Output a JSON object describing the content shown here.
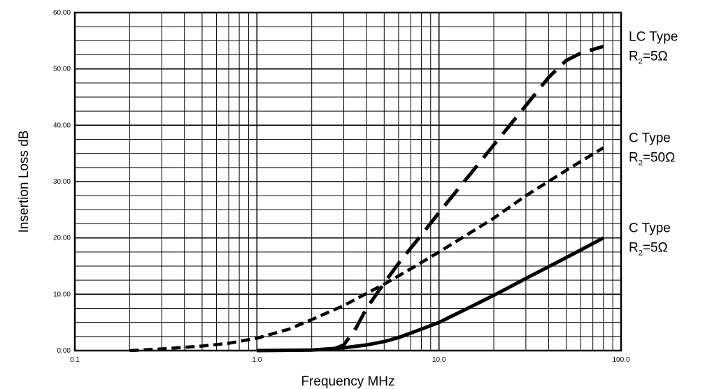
{
  "chart_data": {
    "type": "line",
    "xlabel": "Frequency MHz",
    "ylabel": "Insertion Loss dB",
    "x_scale": "log",
    "xlim": [
      0.1,
      100.0
    ],
    "ylim": [
      0,
      60
    ],
    "x_ticks": [
      {
        "value": 0.1,
        "label": "0.1"
      },
      {
        "value": 1,
        "label": "1.0"
      },
      {
        "value": 10,
        "label": "10.0"
      },
      {
        "value": 100,
        "label": "100.0"
      }
    ],
    "y_ticks": [
      {
        "value": 0,
        "label": "0.00"
      },
      {
        "value": 10,
        "label": "10.00"
      },
      {
        "value": 20,
        "label": "20.00"
      },
      {
        "value": 30,
        "label": "30.00"
      },
      {
        "value": 40,
        "label": "40.00"
      },
      {
        "value": 50,
        "label": "50.00"
      },
      {
        "value": 60,
        "label": "60.00"
      }
    ],
    "grid": true,
    "series": [
      {
        "name": "LC Type R2=5Ω",
        "label_line1": "LC Type",
        "label_line2_main": "R",
        "label_line2_sub": "2",
        "label_line2_rest": "=5Ω",
        "style": "long-dash",
        "color": "#000000",
        "x": [
          2.6,
          3.0,
          3.5,
          4.0,
          5.0,
          6.0,
          8.0,
          10.0,
          15.0,
          20.0,
          30.0,
          40.0,
          50.0,
          60.0,
          80.0
        ],
        "y": [
          0.2,
          1.0,
          4.0,
          7.5,
          12.0,
          15.5,
          20.5,
          24.5,
          31.5,
          36.5,
          43.5,
          48.5,
          51.5,
          52.8,
          54.0
        ]
      },
      {
        "name": "C Type R2=50Ω",
        "label_line1": "C Type",
        "label_line2_main": "R",
        "label_line2_sub": "2",
        "label_line2_rest": "=50Ω",
        "style": "short-dash",
        "color": "#000000",
        "x": [
          0.2,
          0.3,
          0.5,
          0.7,
          1.0,
          1.5,
          2.0,
          3.0,
          5.0,
          7.0,
          10.0,
          15.0,
          20.0,
          30.0,
          50.0,
          80.0
        ],
        "y": [
          0.0,
          0.3,
          0.8,
          1.3,
          2.2,
          3.8,
          5.5,
          8.0,
          11.8,
          14.5,
          17.5,
          21.0,
          23.5,
          27.5,
          32.0,
          36.0
        ]
      },
      {
        "name": "C Type R2=5Ω",
        "label_line1": "C Type",
        "label_line2_main": "R",
        "label_line2_sub": "2",
        "label_line2_rest": "=5Ω",
        "style": "solid",
        "color": "#000000",
        "x": [
          1.0,
          2.0,
          3.0,
          4.0,
          5.0,
          6.0,
          8.0,
          10.0,
          15.0,
          20.0,
          30.0,
          50.0,
          80.0
        ],
        "y": [
          0.0,
          0.1,
          0.5,
          1.0,
          1.6,
          2.3,
          3.8,
          5.0,
          7.8,
          9.8,
          12.8,
          16.5,
          20.0
        ]
      }
    ]
  }
}
